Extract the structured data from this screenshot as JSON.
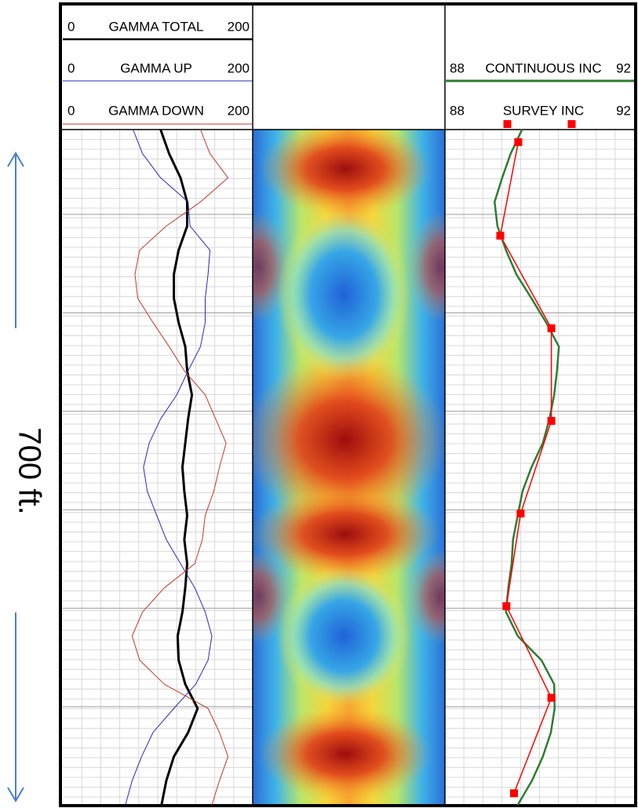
{
  "depth_label": "700 ft.",
  "chart_data": [
    {
      "type": "line",
      "series": [
        {
          "name": "GAMMA TOTAL",
          "color": "#000000",
          "xlim": [
            0,
            200
          ],
          "values": [
            103,
            112,
            124,
            131,
            131,
            122,
            117,
            117,
            122,
            129,
            131,
            136,
            132,
            129,
            126,
            128,
            131,
            128,
            131,
            129,
            126,
            121,
            122,
            129,
            142,
            132,
            117,
            109,
            104
          ]
        },
        {
          "name": "GAMMA UP",
          "color": "#2a2ab8",
          "xlim": [
            0,
            200
          ],
          "values": [
            74,
            84,
            103,
            132,
            134,
            155,
            153,
            150,
            150,
            145,
            132,
            120,
            103,
            91,
            85,
            89,
            99,
            109,
            124,
            139,
            150,
            157,
            153,
            140,
            117,
            95,
            83,
            73,
            66
          ]
        },
        {
          "name": "GAMMA DOWN",
          "color": "#c0392b",
          "xlim": [
            0,
            200
          ],
          "values": [
            145,
            155,
            174,
            145,
            109,
            81,
            76,
            79,
            95,
            112,
            128,
            150,
            161,
            172,
            165,
            159,
            150,
            147,
            139,
            107,
            84,
            73,
            81,
            107,
            153,
            165,
            174,
            165,
            157
          ]
        }
      ]
    },
    {
      "type": "line",
      "ylim": [
        0,
        700
      ],
      "series": [
        {
          "name": "CONTINUOUS INC",
          "color": "#2e7d32",
          "xlim": [
            88,
            92
          ],
          "values": [
            89.63,
            89.39,
            89.21,
            89.05,
            89.11,
            89.29,
            89.51,
            89.83,
            90.14,
            90.41,
            90.37,
            90.31,
            90.21,
            90.07,
            89.83,
            89.64,
            89.54,
            89.44,
            89.41,
            89.34,
            89.29,
            89.54,
            90.04,
            90.31,
            90.32,
            90.24,
            90.07,
            89.84,
            89.54
          ]
        },
        {
          "name": "SURVEY INC",
          "type": "scatter",
          "color": "#ff0000",
          "xlim": [
            88,
            92
          ],
          "depths": [
            13,
            110,
            206,
            302,
            398,
            494,
            589,
            688
          ],
          "values": [
            89.55,
            89.17,
            90.25,
            90.25,
            89.6,
            89.3,
            90.25,
            89.46
          ]
        }
      ]
    }
  ]
}
